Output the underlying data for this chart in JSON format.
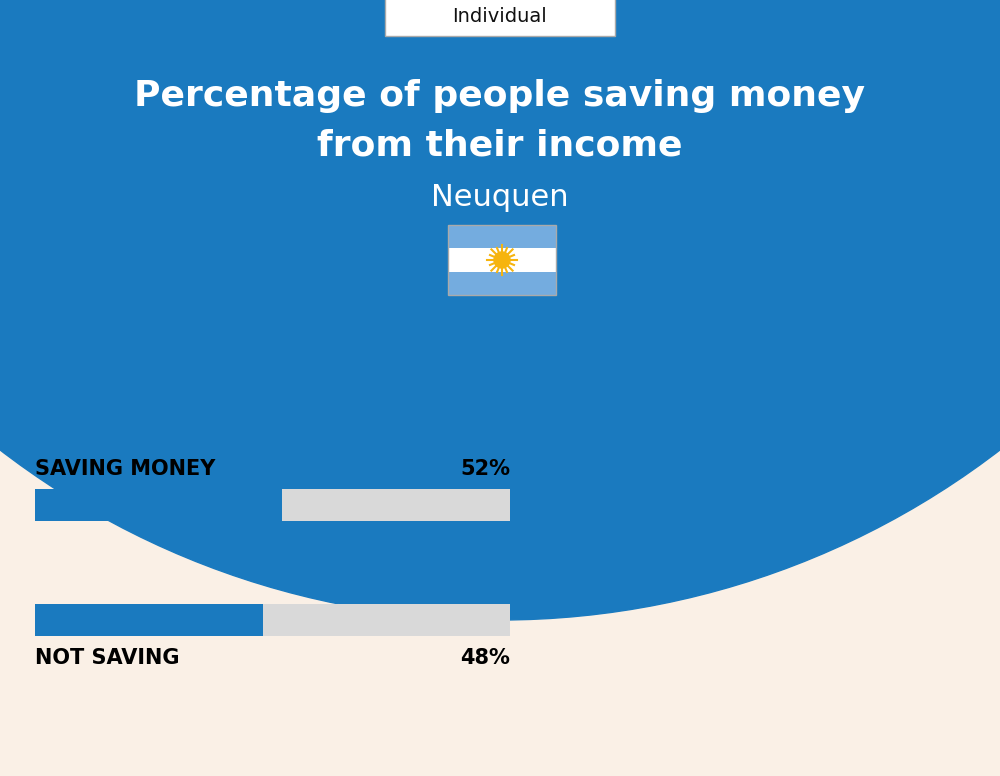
{
  "title_line1": "Percentage of people saving money",
  "title_line2": "from their income",
  "subtitle": "Neuquen",
  "tag_text": "Individual",
  "saving_label": "SAVING MONEY",
  "saving_value": 52,
  "saving_pct_text": "52%",
  "not_saving_label": "NOT SAVING",
  "not_saving_value": 48,
  "not_saving_pct_text": "48%",
  "bar_color": "#1a7abf",
  "bar_bg_color": "#d9d9d9",
  "header_bg_color": "#1a7abf",
  "page_bg_color": "#faf0e6",
  "title_color": "#ffffff",
  "subtitle_color": "#ffffff",
  "tag_color": "#111111",
  "label_color": "#000000",
  "pct_color": "#000000",
  "bar_max": 100,
  "fig_width": 10.0,
  "fig_height": 7.76
}
